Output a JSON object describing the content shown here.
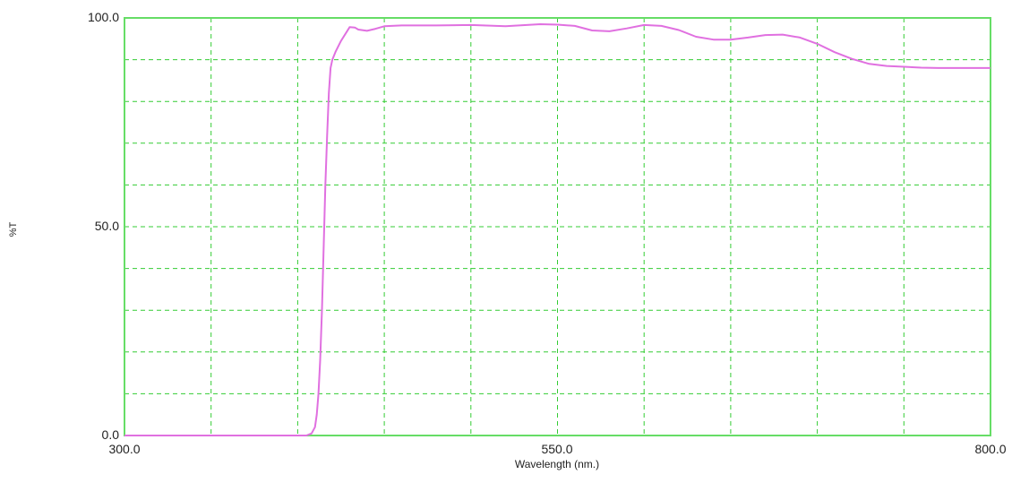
{
  "chart_data": {
    "type": "line",
    "xlabel": "Wavelength (nm.)",
    "ylabel": "%T",
    "xlim": [
      300.0,
      800.0
    ],
    "ylim": [
      0.0,
      100.0
    ],
    "x_tick_labels": [
      "300.0",
      "550.0",
      "800.0"
    ],
    "y_tick_labels": [
      "0.0",
      "50.0",
      "100.0"
    ],
    "grid": true,
    "grid_x_step": 50,
    "grid_y_step": 10,
    "series": [
      {
        "color": "#e070e0",
        "x": [
          300,
          320,
          340,
          360,
          380,
          400,
          405,
          408,
          410,
          411,
          412,
          413,
          414,
          415,
          416,
          417,
          418,
          419,
          420,
          422,
          425,
          430,
          433,
          435,
          440,
          445,
          450,
          460,
          480,
          500,
          520,
          540,
          550,
          560,
          570,
          580,
          590,
          600,
          610,
          620,
          630,
          640,
          650,
          660,
          670,
          680,
          690,
          700,
          710,
          720,
          730,
          740,
          750,
          760,
          770,
          780,
          790,
          800
        ],
        "y": [
          0,
          0,
          0,
          0,
          0,
          0,
          0,
          0.5,
          2,
          5,
          10,
          18,
          30,
          45,
          60,
          72,
          82,
          88,
          90,
          92,
          94.5,
          97.8,
          97.7,
          97.2,
          96.9,
          97.4,
          98.0,
          98.2,
          98.2,
          98.3,
          98.0,
          98.5,
          98.4,
          98.1,
          97.0,
          96.8,
          97.5,
          98.3,
          98.1,
          97.1,
          95.5,
          94.8,
          94.8,
          95.3,
          95.9,
          96.0,
          95.3,
          93.8,
          91.8,
          90.2,
          89.0,
          88.5,
          88.3,
          88.1,
          88.0,
          88.0,
          88.0,
          88.0
        ]
      }
    ]
  },
  "colors": {
    "frame": "#66dd66",
    "grid": "#33cc33",
    "curve": "#e070e0",
    "background": "#ffffff"
  }
}
